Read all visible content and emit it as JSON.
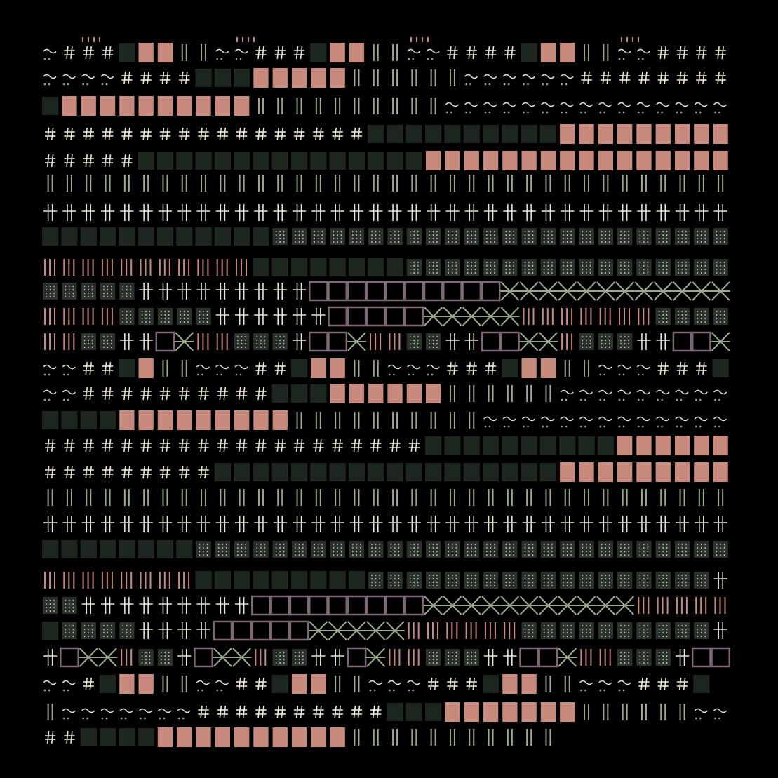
{
  "artwork": {
    "palette": {
      "background": "#000000",
      "cream": "#e8e4d2",
      "sage": "#9aaa8c",
      "salmon": "#c98a7e",
      "mauve": "#7e6878",
      "dark_cell": "#1d261f",
      "dim_cell": "#2b332c"
    },
    "cell_types": [
      "punct",
      "hash",
      "dark",
      "salmon",
      "bars",
      "cross",
      "dots",
      "pink-ticks",
      "box",
      "x-mesh"
    ],
    "rows": [
      {
        "pattern": [
          "punct",
          "hash",
          "dark",
          "salmon",
          "bars",
          "punct"
        ],
        "repeat": true
      },
      {
        "pattern": [
          "punct",
          "hash",
          "dark",
          "salmon",
          "bars",
          "punct"
        ],
        "repeat": true
      },
      {
        "pattern": [
          "dark",
          "salmon",
          "bars",
          "punct",
          "punct"
        ],
        "repeat": true
      },
      {
        "pattern": [
          "punct",
          "hash",
          "dark",
          "salmon"
        ],
        "repeat": false
      },
      {
        "pattern": [
          "hash",
          "dark",
          "salmon"
        ],
        "repeat": false
      },
      {
        "pattern": [
          "bars"
        ],
        "repeat": true
      },
      {
        "pattern": [
          "cross"
        ],
        "repeat": true
      },
      {
        "pattern": [
          "dark",
          "dots"
        ],
        "repeat": false
      },
      {
        "pattern": [
          "pink-ticks",
          "dark",
          "dots"
        ],
        "repeat": false
      },
      {
        "pattern": [
          "dots",
          "cross",
          "box",
          "x-mesh"
        ],
        "repeat": false
      },
      {
        "pattern": [
          "pink-ticks",
          "dots",
          "cross",
          "box",
          "x-mesh",
          "pink-ticks"
        ],
        "repeat": false
      },
      {
        "pattern": [
          "pink-ticks",
          "dots",
          "cross",
          "box",
          "x-mesh"
        ],
        "repeat": true
      }
    ]
  }
}
